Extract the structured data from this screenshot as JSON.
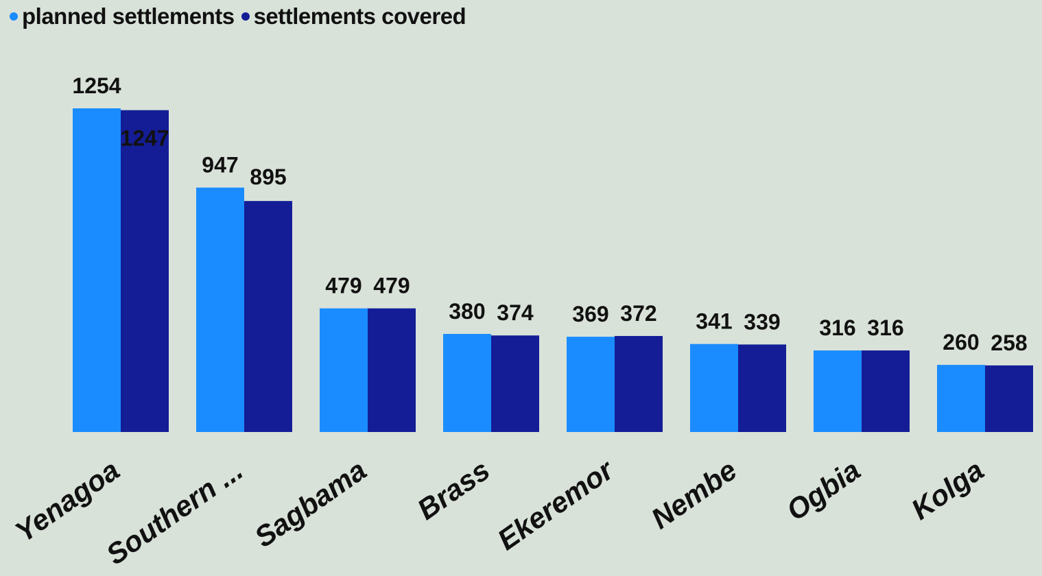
{
  "chart_data": {
    "type": "bar",
    "categories": [
      "Yenagoa",
      "Southern ...",
      "Sagbama",
      "Brass",
      "Ekeremor",
      "Nembe",
      "Ogbia",
      "Kolga"
    ],
    "series": [
      {
        "name": "planned settlements",
        "color": "#1a8cff",
        "values": [
          1254,
          947,
          479,
          380,
          369,
          341,
          316,
          260
        ]
      },
      {
        "name": "settlements covered",
        "color": "#141d96",
        "values": [
          1247,
          895,
          479,
          374,
          372,
          339,
          316,
          258
        ]
      }
    ],
    "ylim": [
      0,
      1254
    ],
    "grid": false,
    "legend_position": "top-left",
    "data_labels": true
  }
}
